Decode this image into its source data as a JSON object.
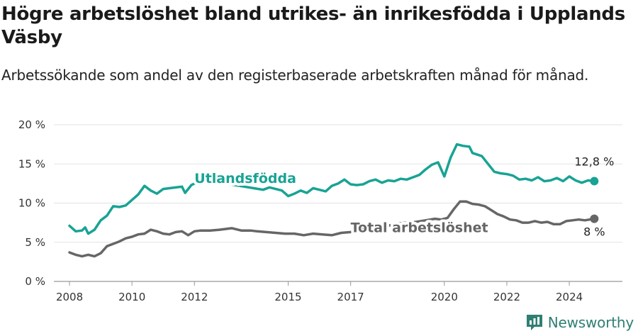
{
  "title": "Högre arbetslöshet bland utrikes- än inrikesfödda i Upplands Väsby",
  "subtitle": "Arbetssökande som andel av den registerbaserade arbetskraften månad för månad.",
  "brand": {
    "name": "Newsworthy",
    "icon": "newsworthy-logo-icon",
    "color": "#2f7f73"
  },
  "chart_data": {
    "type": "line",
    "title": "Högre arbetslöshet bland utrikes- än inrikesfödda i Upplands Väsby",
    "subtitle": "Arbetssökande som andel av den registerbaserade arbetskraften månad för månad.",
    "xlabel": "",
    "ylabel": "",
    "xlim": [
      2007.5,
      2025.7
    ],
    "ylim": [
      0,
      20
    ],
    "y_ticks": [
      0,
      5,
      10,
      15,
      20
    ],
    "y_tick_labels": [
      "0 %",
      "5 %",
      "10 %",
      "15 %",
      "20 %"
    ],
    "x_ticks": [
      2008,
      2010,
      2012,
      2015,
      2017,
      2020,
      2022,
      2024
    ],
    "x_tick_labels": [
      "2008",
      "2010",
      "2012",
      "2015",
      "2017",
      "2020",
      "2022",
      "2024"
    ],
    "grid": true,
    "legend": "inline labels",
    "series": [
      {
        "name": "Utlandsfödda",
        "color": "#18a394",
        "end_label": "12,8 %",
        "points": [
          [
            2008.0,
            7.1
          ],
          [
            2008.2,
            6.4
          ],
          [
            2008.4,
            6.5
          ],
          [
            2008.5,
            6.9
          ],
          [
            2008.6,
            6.1
          ],
          [
            2008.8,
            6.6
          ],
          [
            2009.0,
            7.8
          ],
          [
            2009.2,
            8.4
          ],
          [
            2009.4,
            9.6
          ],
          [
            2009.6,
            9.5
          ],
          [
            2009.8,
            9.7
          ],
          [
            2010.0,
            10.4
          ],
          [
            2010.2,
            11.1
          ],
          [
            2010.4,
            12.2
          ],
          [
            2010.6,
            11.6
          ],
          [
            2010.8,
            11.2
          ],
          [
            2011.0,
            11.8
          ],
          [
            2011.2,
            11.9
          ],
          [
            2011.4,
            12.0
          ],
          [
            2011.6,
            12.1
          ],
          [
            2011.7,
            11.3
          ],
          [
            2011.9,
            12.3
          ],
          [
            2012.0,
            12.5
          ],
          [
            2012.2,
            12.6
          ],
          [
            2012.5,
            12.6
          ],
          [
            2012.8,
            12.5
          ],
          [
            2013.0,
            12.5
          ],
          [
            2013.3,
            12.3
          ],
          [
            2013.6,
            12.1
          ],
          [
            2013.9,
            11.9
          ],
          [
            2014.2,
            11.7
          ],
          [
            2014.4,
            12.0
          ],
          [
            2014.6,
            11.8
          ],
          [
            2014.8,
            11.6
          ],
          [
            2015.0,
            10.9
          ],
          [
            2015.2,
            11.2
          ],
          [
            2015.4,
            11.6
          ],
          [
            2015.6,
            11.3
          ],
          [
            2015.8,
            11.9
          ],
          [
            2016.0,
            11.7
          ],
          [
            2016.2,
            11.5
          ],
          [
            2016.4,
            12.2
          ],
          [
            2016.6,
            12.5
          ],
          [
            2016.8,
            13.0
          ],
          [
            2017.0,
            12.4
          ],
          [
            2017.2,
            12.3
          ],
          [
            2017.4,
            12.4
          ],
          [
            2017.6,
            12.8
          ],
          [
            2017.8,
            13.0
          ],
          [
            2018.0,
            12.6
          ],
          [
            2018.2,
            12.9
          ],
          [
            2018.4,
            12.8
          ],
          [
            2018.6,
            13.1
          ],
          [
            2018.8,
            13.0
          ],
          [
            2019.0,
            13.3
          ],
          [
            2019.2,
            13.6
          ],
          [
            2019.4,
            14.3
          ],
          [
            2019.6,
            14.9
          ],
          [
            2019.8,
            15.2
          ],
          [
            2020.0,
            13.4
          ],
          [
            2020.2,
            15.8
          ],
          [
            2020.4,
            17.5
          ],
          [
            2020.6,
            17.3
          ],
          [
            2020.8,
            17.2
          ],
          [
            2020.9,
            16.4
          ],
          [
            2021.2,
            16.0
          ],
          [
            2021.4,
            15.0
          ],
          [
            2021.6,
            14.0
          ],
          [
            2021.8,
            13.8
          ],
          [
            2022.0,
            13.7
          ],
          [
            2022.2,
            13.5
          ],
          [
            2022.4,
            13.0
          ],
          [
            2022.6,
            13.1
          ],
          [
            2022.8,
            12.9
          ],
          [
            2023.0,
            13.3
          ],
          [
            2023.2,
            12.8
          ],
          [
            2023.4,
            12.9
          ],
          [
            2023.6,
            13.2
          ],
          [
            2023.8,
            12.8
          ],
          [
            2024.0,
            13.4
          ],
          [
            2024.2,
            12.9
          ],
          [
            2024.4,
            12.6
          ],
          [
            2024.6,
            12.9
          ],
          [
            2024.8,
            12.8
          ]
        ]
      },
      {
        "name": "Total arbetslöshet",
        "color": "#666666",
        "end_label": "8 %",
        "points": [
          [
            2008.0,
            3.7
          ],
          [
            2008.2,
            3.4
          ],
          [
            2008.4,
            3.2
          ],
          [
            2008.6,
            3.4
          ],
          [
            2008.8,
            3.2
          ],
          [
            2009.0,
            3.6
          ],
          [
            2009.2,
            4.5
          ],
          [
            2009.4,
            4.8
          ],
          [
            2009.6,
            5.1
          ],
          [
            2009.8,
            5.5
          ],
          [
            2010.0,
            5.7
          ],
          [
            2010.2,
            6.0
          ],
          [
            2010.4,
            6.1
          ],
          [
            2010.6,
            6.6
          ],
          [
            2010.8,
            6.4
          ],
          [
            2011.0,
            6.1
          ],
          [
            2011.2,
            6.0
          ],
          [
            2011.4,
            6.3
          ],
          [
            2011.6,
            6.4
          ],
          [
            2011.8,
            5.9
          ],
          [
            2012.0,
            6.4
          ],
          [
            2012.2,
            6.5
          ],
          [
            2012.5,
            6.5
          ],
          [
            2012.8,
            6.6
          ],
          [
            2013.0,
            6.7
          ],
          [
            2013.2,
            6.8
          ],
          [
            2013.5,
            6.5
          ],
          [
            2013.8,
            6.5
          ],
          [
            2014.0,
            6.4
          ],
          [
            2014.3,
            6.3
          ],
          [
            2014.6,
            6.2
          ],
          [
            2014.9,
            6.1
          ],
          [
            2015.2,
            6.1
          ],
          [
            2015.5,
            5.9
          ],
          [
            2015.8,
            6.1
          ],
          [
            2016.1,
            6.0
          ],
          [
            2016.4,
            5.9
          ],
          [
            2016.7,
            6.2
          ],
          [
            2017.0,
            6.3
          ],
          [
            2017.3,
            6.5
          ],
          [
            2017.6,
            6.8
          ],
          [
            2017.9,
            7.0
          ],
          [
            2018.2,
            7.1
          ],
          [
            2018.5,
            7.4
          ],
          [
            2018.8,
            7.5
          ],
          [
            2019.1,
            7.6
          ],
          [
            2019.4,
            7.8
          ],
          [
            2019.7,
            8.0
          ],
          [
            2019.9,
            7.9
          ],
          [
            2020.1,
            8.1
          ],
          [
            2020.3,
            9.2
          ],
          [
            2020.5,
            10.2
          ],
          [
            2020.7,
            10.2
          ],
          [
            2020.9,
            9.9
          ],
          [
            2021.1,
            9.8
          ],
          [
            2021.3,
            9.6
          ],
          [
            2021.5,
            9.1
          ],
          [
            2021.7,
            8.6
          ],
          [
            2021.9,
            8.3
          ],
          [
            2022.1,
            7.9
          ],
          [
            2022.3,
            7.8
          ],
          [
            2022.5,
            7.5
          ],
          [
            2022.7,
            7.5
          ],
          [
            2022.9,
            7.7
          ],
          [
            2023.1,
            7.5
          ],
          [
            2023.3,
            7.6
          ],
          [
            2023.5,
            7.3
          ],
          [
            2023.7,
            7.3
          ],
          [
            2023.9,
            7.7
          ],
          [
            2024.1,
            7.8
          ],
          [
            2024.3,
            7.9
          ],
          [
            2024.5,
            7.8
          ],
          [
            2024.8,
            8.0
          ]
        ]
      }
    ]
  }
}
